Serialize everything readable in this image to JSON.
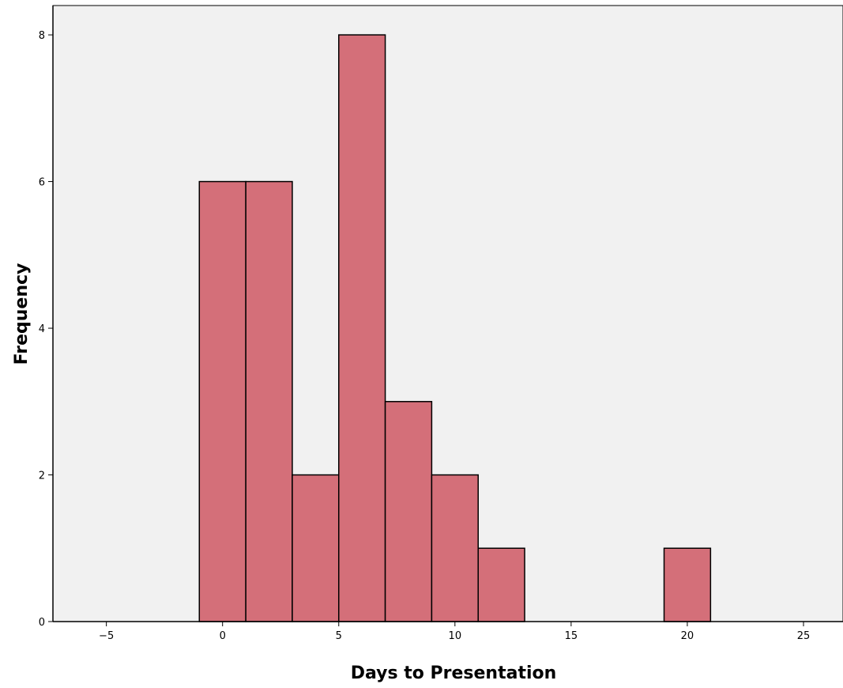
{
  "colors": {
    "plot_background": "#f1f1f1",
    "bar_fill": "#d46f79",
    "bar_stroke": "#000000",
    "axis": "#000000"
  },
  "chart_data": {
    "type": "bar",
    "histogram": true,
    "title": "",
    "xlabel": "Days to Presentation",
    "ylabel": "Frequency",
    "xlim": [
      -7.3,
      26.7
    ],
    "ylim": [
      0,
      8.4
    ],
    "x_ticks": [
      -5,
      0,
      5,
      10,
      15,
      20,
      25
    ],
    "y_ticks": [
      0,
      2,
      4,
      6,
      8
    ],
    "bin_width": 2,
    "bins": [
      {
        "start": -1,
        "end": 1,
        "value": 6
      },
      {
        "start": 1,
        "end": 3,
        "value": 6
      },
      {
        "start": 3,
        "end": 5,
        "value": 2
      },
      {
        "start": 5,
        "end": 7,
        "value": 8
      },
      {
        "start": 7,
        "end": 9,
        "value": 3
      },
      {
        "start": 9,
        "end": 11,
        "value": 2
      },
      {
        "start": 11,
        "end": 13,
        "value": 1
      },
      {
        "start": 19,
        "end": 21,
        "value": 1
      }
    ],
    "grid": false,
    "legend": "none"
  }
}
